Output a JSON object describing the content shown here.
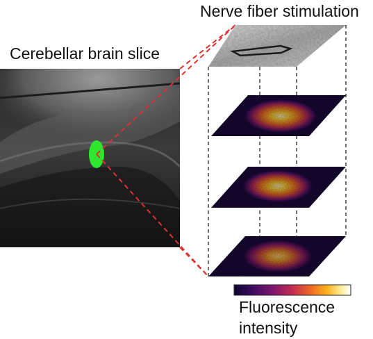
{
  "labels": {
    "stimulation": "Nerve fiber stimulation",
    "slice": "Cerebellar brain slice",
    "colorbar_line1": "Fluorescence",
    "colorbar_line2": "intensity"
  },
  "colors": {
    "marker": "#2ee62e",
    "dashes": "#e03030",
    "colormap": [
      "#0c0530",
      "#3a0c5e",
      "#7a1670",
      "#c12d52",
      "#ef6a22",
      "#fbb41e",
      "#fdf0a0",
      "#ffffff"
    ]
  },
  "layers": [
    {
      "name": "brightfield"
    },
    {
      "name": "fluorescence-1"
    },
    {
      "name": "fluorescence-2"
    },
    {
      "name": "fluorescence-3"
    }
  ]
}
